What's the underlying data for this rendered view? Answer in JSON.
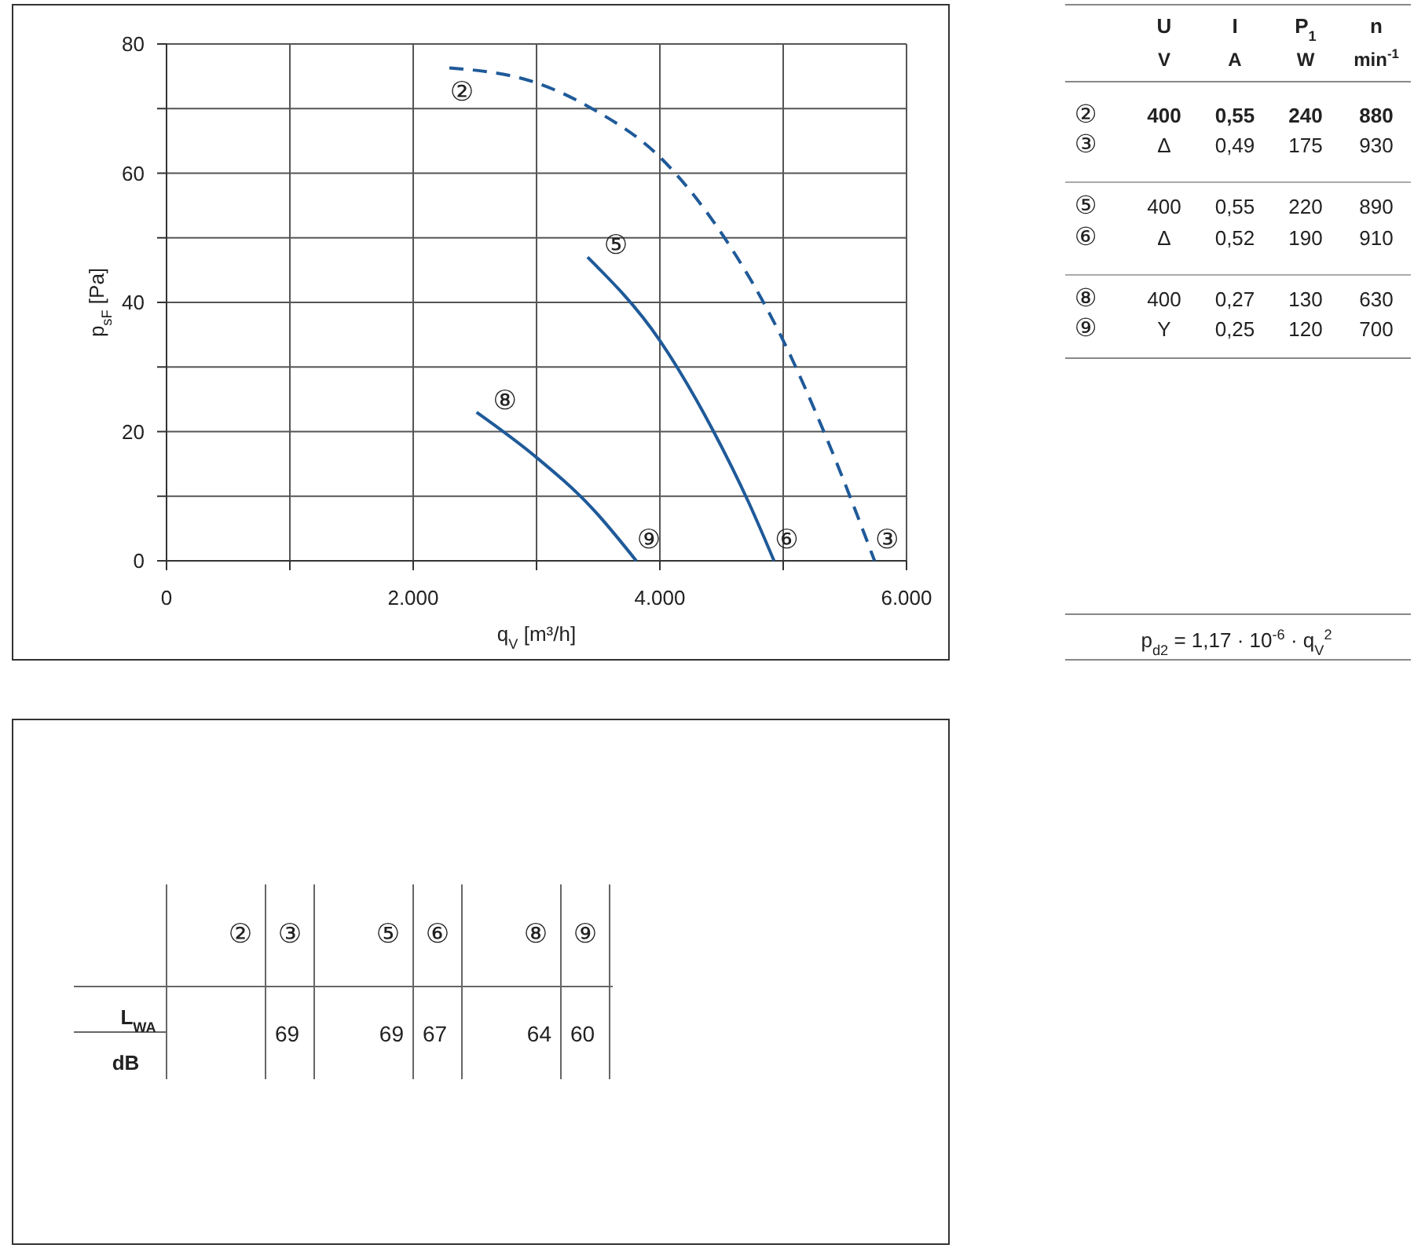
{
  "chart_data": [
    {
      "type": "line",
      "xlabel": "q$_{V}$ [m³/h]",
      "ylabel": "p$_{sF}$ [Pa]",
      "xlim": [
        0,
        6000
      ],
      "ylim": [
        0,
        80
      ],
      "xticks": [
        0,
        {
          "value": 1000,
          "label": null
        },
        {
          "value": 2000,
          "label": "2.000"
        },
        {
          "value": 3000,
          "label": null
        },
        {
          "value": 4000,
          "label": "4.000"
        },
        {
          "value": 5000,
          "label": null
        },
        {
          "value": 6000,
          "label": "6.000"
        }
      ],
      "yticks": [
        0,
        {
          "value": 10,
          "label": null
        },
        20,
        {
          "value": 30,
          "label": null
        },
        40,
        {
          "value": 50,
          "label": null
        },
        60,
        {
          "value": 70,
          "label": null
        },
        80
      ],
      "grid": true,
      "series": [
        {
          "color": "#1f5a99",
          "line_style": "dashed",
          "x": [
            2293,
            2981,
            3468,
            4000,
            4510,
            4977,
            5358,
            5741
          ],
          "values": [
            76.3,
            74.1,
            69.8,
            62.5,
            50.4,
            35.0,
            18.7,
            0
          ]
        },
        {
          "color": "#1f5a99",
          "line_style": "solid",
          "x": [
            3414,
            4000,
            4425,
            4721,
            4926
          ],
          "values": [
            47.0,
            34.1,
            20.4,
            9.0,
            0
          ]
        },
        {
          "color": "#1f5a99",
          "line_style": "solid",
          "x": [
            2514,
            2981,
            3448,
            3809
          ],
          "values": [
            23.0,
            16.3,
            8.2,
            0
          ]
        }
      ],
      "annotations": [
        {
          "text": "②",
          "x": 2293,
          "y": 76.3
        },
        {
          "text": "③",
          "x": 5741,
          "y": 0
        },
        {
          "text": "⑤",
          "x": 3414,
          "y": 47.0
        },
        {
          "text": "⑥",
          "x": 4926,
          "y": 0
        },
        {
          "text": "⑧",
          "x": 2514,
          "y": 23.0
        },
        {
          "text": "⑨",
          "x": 3809,
          "y": 0
        }
      ]
    },
    {
      "type": "other",
      "categories": [
        "U",
        "I",
        "P$_{1}$",
        "n"
      ],
      "y_categories": [
        null,
        "②",
        "③",
        "⑤",
        "⑥",
        "⑧",
        "⑨"
      ],
      "cell_labels": [
        [
          "V",
          "A",
          "W",
          "min$^{-1}$"
        ],
        [
          "400",
          "0,55",
          "240",
          "880"
        ],
        [
          "Δ",
          "0,49",
          "175",
          "930"
        ],
        [
          "400",
          "0,55",
          "220",
          "890"
        ],
        [
          "Δ",
          "0,52",
          "190",
          "910"
        ],
        [
          "400",
          "0,27",
          "130",
          "630"
        ],
        [
          "Y",
          "0,25",
          "120",
          "700"
        ]
      ],
      "annotations": [
        "p$_{d2}$ = 1,17 · 10$^{-6}$ · q$_{V}$$^{2}$"
      ]
    },
    {
      "type": "other",
      "categories": [
        "②",
        "③",
        "⑤",
        "⑥",
        "⑧",
        "⑨"
      ],
      "y_categories": [
        "L$_{WA}$"
      ],
      "ylabel": "dB",
      "cell_labels": [
        [
          null,
          "69",
          "69",
          "67",
          "64",
          "60"
        ]
      ]
    }
  ]
}
